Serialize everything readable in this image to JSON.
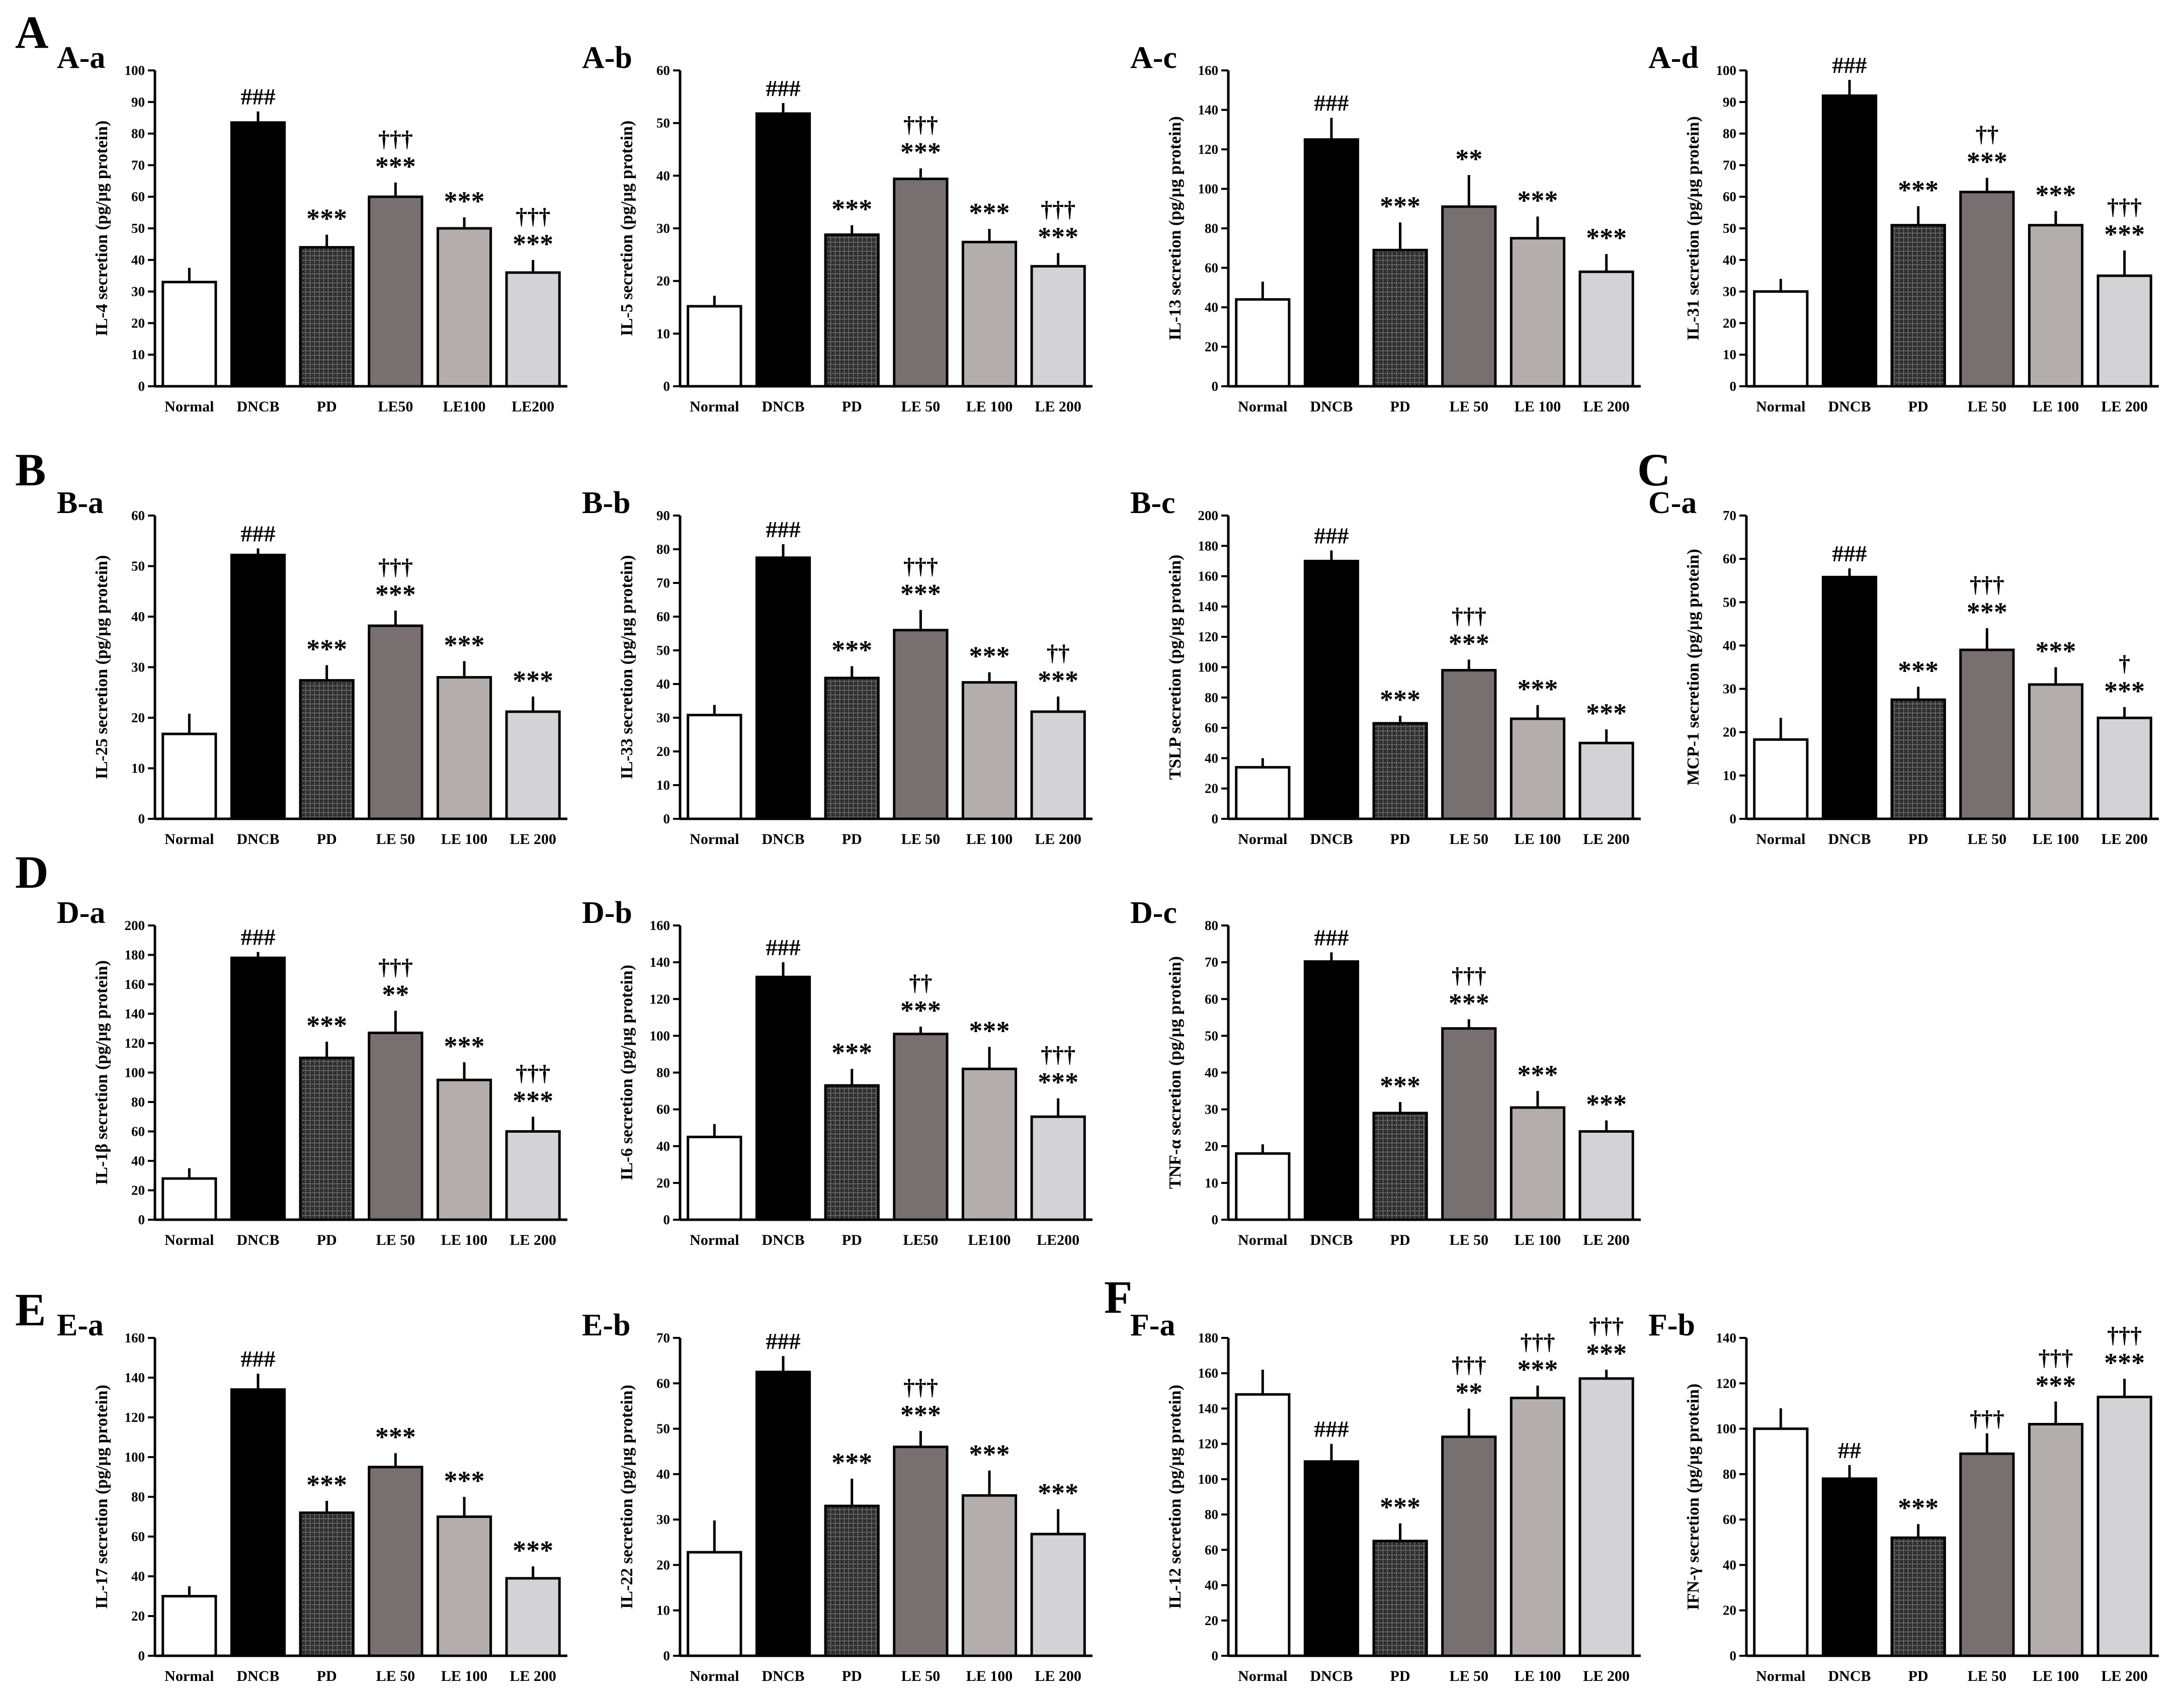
{
  "figure": {
    "section_labels": [
      "A",
      "B",
      "C",
      "D",
      "E",
      "F"
    ]
  },
  "colors": {
    "Normal": "#ffffff",
    "DNCB": "#000000",
    "PD": "#4a4a4a",
    "LE50": "#787070",
    "LE100": "#b3aeac",
    "LE200": "#d3d3d5",
    "stroke": "#000000"
  },
  "chart_data": [
    {
      "panel": "A-a",
      "type": "bar",
      "ylabel": "IL-4 secretion (pg/μg protein)",
      "ylim": [
        0,
        100
      ],
      "ystep": 10,
      "categories": [
        "Normal",
        "DNCB",
        "PD",
        "LE50",
        "LE100",
        "LE200"
      ],
      "values": [
        33,
        83.5,
        44,
        60,
        50,
        36
      ],
      "errors": [
        4.5,
        3.5,
        4,
        4.5,
        3.5,
        4
      ],
      "annotations": [
        [
          "###"
        ],
        [
          "***"
        ],
        [
          "***",
          "†††"
        ],
        [
          "***"
        ],
        [
          "***",
          "†††"
        ]
      ]
    },
    {
      "panel": "A-b",
      "type": "bar",
      "ylabel": "IL-5 secretion (pg/μg protein)",
      "ylim": [
        0,
        60
      ],
      "ystep": 10,
      "categories": [
        "Normal",
        "DNCB",
        "PD",
        "LE 50",
        "LE 100",
        "LE 200"
      ],
      "values": [
        15.2,
        51.8,
        28.8,
        39.4,
        27.4,
        22.8
      ],
      "errors": [
        2,
        2,
        1.8,
        2,
        2.5,
        2.5
      ],
      "annotations": [
        [
          "###"
        ],
        [
          "***"
        ],
        [
          "***",
          "†††"
        ],
        [
          "***"
        ],
        [
          "***",
          "†††"
        ]
      ]
    },
    {
      "panel": "A-c",
      "type": "bar",
      "ylabel": "IL-13 secretion (pg/μg protein)",
      "ylim": [
        0,
        160
      ],
      "ystep": 20,
      "categories": [
        "Normal",
        "DNCB",
        "PD",
        "LE 50",
        "LE 100",
        "LE 200"
      ],
      "values": [
        44,
        125,
        69,
        91,
        75,
        58
      ],
      "errors": [
        9,
        11,
        14,
        16,
        11,
        9
      ],
      "annotations": [
        [
          "###"
        ],
        [
          "***"
        ],
        [
          "**"
        ],
        [
          "***"
        ],
        [
          "***"
        ]
      ]
    },
    {
      "panel": "A-d",
      "type": "bar",
      "ylabel": "IL-31 secretion (pg/μg protein)",
      "ylim": [
        0,
        100
      ],
      "ystep": 10,
      "categories": [
        "Normal",
        "DNCB",
        "PD",
        "LE 50",
        "LE 100",
        "LE 200"
      ],
      "values": [
        30,
        92,
        51,
        61.5,
        51,
        35
      ],
      "errors": [
        4,
        5,
        6,
        4.5,
        4.5,
        8
      ],
      "annotations": [
        [
          "###"
        ],
        [
          "***"
        ],
        [
          "***",
          "††"
        ],
        [
          "***"
        ],
        [
          "***",
          "†††"
        ]
      ]
    },
    {
      "panel": "B-a",
      "type": "bar",
      "ylabel": "IL-25 secretion (pg/μg protein)",
      "ylim": [
        0,
        60
      ],
      "ystep": 10,
      "categories": [
        "Normal",
        "DNCB",
        "PD",
        "LE 50",
        "LE 100",
        "LE 200"
      ],
      "values": [
        16.8,
        52.2,
        27.4,
        38.2,
        28,
        21.2
      ],
      "errors": [
        4,
        1.3,
        3,
        3,
        3.2,
        3
      ],
      "annotations": [
        [
          "###"
        ],
        [
          "***"
        ],
        [
          "***",
          "†††"
        ],
        [
          "***"
        ],
        [
          "***"
        ]
      ]
    },
    {
      "panel": "B-b",
      "type": "bar",
      "ylabel": "IL-33 secretion (pg/μg protein)",
      "ylim": [
        0,
        90
      ],
      "ystep": 10,
      "categories": [
        "Normal",
        "DNCB",
        "PD",
        "LE 50",
        "LE 100",
        "LE 200"
      ],
      "values": [
        30.8,
        77.5,
        41.8,
        56,
        40.5,
        31.8
      ],
      "errors": [
        3,
        4,
        3.5,
        6,
        3,
        4.5
      ],
      "annotations": [
        [
          "###"
        ],
        [
          "***"
        ],
        [
          "***",
          "†††"
        ],
        [
          "***"
        ],
        [
          "***",
          "††"
        ]
      ]
    },
    {
      "panel": "B-c",
      "type": "bar",
      "ylabel": "TSLP secretion (pg/μg protein)",
      "ylim": [
        0,
        200
      ],
      "ystep": 20,
      "categories": [
        "Normal",
        "DNCB",
        "PD",
        "LE 50",
        "LE 100",
        "LE 200"
      ],
      "values": [
        34,
        170,
        63,
        98,
        66,
        50
      ],
      "errors": [
        6,
        7,
        5,
        7,
        9,
        9
      ],
      "annotations": [
        [
          "###"
        ],
        [
          "***"
        ],
        [
          "***",
          "†††"
        ],
        [
          "***"
        ],
        [
          "***"
        ]
      ]
    },
    {
      "panel": "C-a",
      "type": "bar",
      "ylabel": "MCP-1 secretion (pg/μg protein)",
      "ylim": [
        0,
        70
      ],
      "ystep": 10,
      "categories": [
        "Normal",
        "DNCB",
        "PD",
        "LE 50",
        "LE 100",
        "LE 200"
      ],
      "values": [
        18.3,
        55.8,
        27.5,
        39,
        31,
        23.3
      ],
      "errors": [
        5,
        2,
        3,
        5,
        4,
        2.5
      ],
      "annotations": [
        [
          "###"
        ],
        [
          "***"
        ],
        [
          "***",
          "†††"
        ],
        [
          "***"
        ],
        [
          "***",
          "†"
        ]
      ]
    },
    {
      "panel": "D-a",
      "type": "bar",
      "ylabel": "IL-1β secretion (pg/μg protein)",
      "ylim": [
        0,
        200
      ],
      "ystep": 20,
      "categories": [
        "Normal",
        "DNCB",
        "PD",
        "LE 50",
        "LE 100",
        "LE 200"
      ],
      "values": [
        28,
        178,
        110,
        127,
        95,
        60
      ],
      "errors": [
        7,
        4,
        11,
        15,
        12,
        10
      ],
      "annotations": [
        [
          "###"
        ],
        [
          "***"
        ],
        [
          "**",
          "†††"
        ],
        [
          "***"
        ],
        [
          "***",
          "†††"
        ]
      ]
    },
    {
      "panel": "D-b",
      "type": "bar",
      "ylabel": "IL-6 secretion (pg/μg protein)",
      "ylim": [
        0,
        160
      ],
      "ystep": 20,
      "categories": [
        "Normal",
        "DNCB",
        "PD",
        "LE50",
        "LE100",
        "LE200"
      ],
      "values": [
        45,
        132,
        73,
        101,
        82,
        56
      ],
      "errors": [
        7,
        8,
        9,
        4,
        12,
        10
      ],
      "annotations": [
        [
          "###"
        ],
        [
          "***"
        ],
        [
          "***",
          "††"
        ],
        [
          "***"
        ],
        [
          "***",
          "†††"
        ]
      ]
    },
    {
      "panel": "D-c",
      "type": "bar",
      "ylabel": "TNF-α secretion (pg/μg protein)",
      "ylim": [
        0,
        80
      ],
      "ystep": 10,
      "categories": [
        "Normal",
        "DNCB",
        "PD",
        "LE 50",
        "LE 100",
        "LE 200"
      ],
      "values": [
        18,
        70.2,
        29,
        52,
        30.5,
        24
      ],
      "errors": [
        2.5,
        2.5,
        3,
        2.5,
        4.5,
        3
      ],
      "annotations": [
        [
          "###"
        ],
        [
          "***"
        ],
        [
          "***",
          "†††"
        ],
        [
          "***"
        ],
        [
          "***"
        ]
      ]
    },
    {
      "panel": "E-a",
      "type": "bar",
      "ylabel": "IL-17 secretion (pg/μg protein)",
      "ylim": [
        0,
        160
      ],
      "ystep": 20,
      "categories": [
        "Normal",
        "DNCB",
        "PD",
        "LE 50",
        "LE 100",
        "LE 200"
      ],
      "values": [
        30,
        134,
        72,
        95,
        70,
        39
      ],
      "errors": [
        5,
        8,
        6,
        7,
        10,
        6
      ],
      "annotations": [
        [
          "###"
        ],
        [
          "***"
        ],
        [
          "***"
        ],
        [
          "***"
        ],
        [
          "***"
        ]
      ]
    },
    {
      "panel": "E-b",
      "type": "bar",
      "ylabel": "IL-22 secretion (pg/μg protein)",
      "ylim": [
        0,
        70
      ],
      "ystep": 10,
      "categories": [
        "Normal",
        "DNCB",
        "PD",
        "LE 50",
        "LE 100",
        "LE 200"
      ],
      "values": [
        22.8,
        62.5,
        33,
        46,
        35.3,
        26.8
      ],
      "errors": [
        7,
        3.5,
        6,
        3.5,
        5.5,
        5.5
      ],
      "annotations": [
        [
          "###"
        ],
        [
          "***"
        ],
        [
          "***",
          "†††"
        ],
        [
          "***"
        ],
        [
          "***"
        ]
      ]
    },
    {
      "panel": "F-a",
      "type": "bar",
      "ylabel": "IL-12 secretion (pg/μg protein)",
      "ylim": [
        0,
        180
      ],
      "ystep": 20,
      "categories": [
        "Normal",
        "DNCB",
        "PD",
        "LE 50",
        "LE 100",
        "LE 200"
      ],
      "values": [
        148,
        110,
        65,
        124,
        146,
        157
      ],
      "errors": [
        14,
        10,
        10,
        16,
        7,
        5
      ],
      "annotations": [
        [
          "###"
        ],
        [
          "***"
        ],
        [
          "**",
          "†††"
        ],
        [
          "***",
          "†††"
        ],
        [
          "***",
          "†††"
        ]
      ]
    },
    {
      "panel": "F-b",
      "type": "bar",
      "ylabel": "IFN-γ secretion (pg/μg protein)",
      "ylim": [
        0,
        140
      ],
      "ystep": 20,
      "categories": [
        "Normal",
        "DNCB",
        "PD",
        "LE 50",
        "LE 100",
        "LE 200"
      ],
      "values": [
        100,
        78,
        52,
        89,
        102,
        114
      ],
      "errors": [
        9,
        6,
        6,
        9,
        10,
        8
      ],
      "annotations": [
        [
          "##"
        ],
        [
          "***"
        ],
        [
          "†††"
        ],
        [
          "***",
          "†††"
        ],
        [
          "***",
          "†††"
        ]
      ]
    }
  ]
}
